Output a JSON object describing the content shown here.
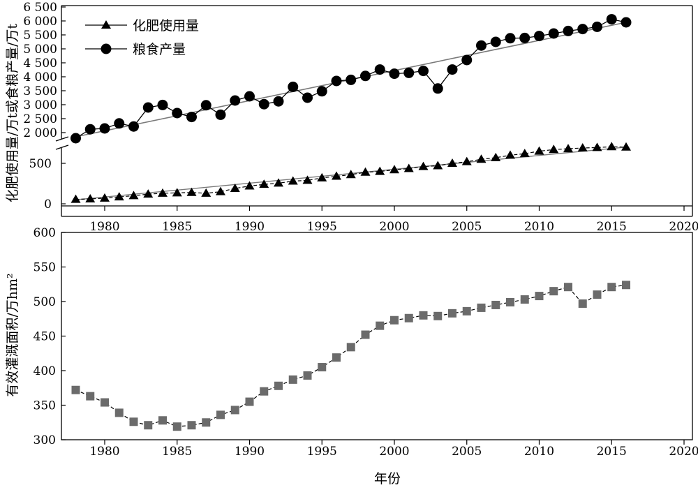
{
  "chart_data": [
    {
      "type": "line",
      "title": "",
      "xlabel": "",
      "ylabel": "化肥使用量/万t或食粮产量/万t",
      "xlim": [
        1977,
        2020
      ],
      "x_ticks": [
        "1980",
        "1985",
        "1990",
        "1995",
        "2000",
        "2005",
        "2010",
        "2015",
        "2020"
      ],
      "y_axis_break": true,
      "y_ticks_upper": [
        "6 500",
        "6 000",
        "5 500",
        "5 000",
        "4 500",
        "4 000",
        "3 500",
        "3 000",
        "2 500",
        "2 000"
      ],
      "y_ticks_lower": [
        "500",
        "0"
      ],
      "legend_position": "top-left",
      "x": [
        1978,
        1979,
        1980,
        1981,
        1982,
        1983,
        1984,
        1985,
        1986,
        1987,
        1988,
        1989,
        1990,
        1991,
        1992,
        1993,
        1994,
        1995,
        1996,
        1997,
        1998,
        1999,
        2000,
        2001,
        2002,
        2003,
        2004,
        2005,
        2006,
        2007,
        2008,
        2009,
        2010,
        2011,
        2012,
        2013,
        2014,
        2015,
        2016
      ],
      "series": [
        {
          "name": "化肥使用量",
          "marker": "triangle",
          "color": "#000000",
          "values": [
            55,
            60,
            70,
            85,
            100,
            120,
            130,
            135,
            140,
            130,
            150,
            190,
            220,
            240,
            255,
            280,
            290,
            320,
            340,
            360,
            390,
            400,
            420,
            435,
            460,
            470,
            500,
            520,
            550,
            570,
            600,
            620,
            650,
            670,
            680,
            690,
            695,
            705,
            700
          ],
          "trend": [
            50,
            700
          ]
        },
        {
          "name": "粮食产量",
          "marker": "circle",
          "color": "#000000",
          "values": [
            1800,
            2120,
            2150,
            2330,
            2220,
            2900,
            2990,
            2700,
            2560,
            2980,
            2640,
            3150,
            3300,
            3020,
            3120,
            3640,
            3250,
            3480,
            3850,
            3890,
            4030,
            4260,
            4110,
            4140,
            4210,
            3580,
            4260,
            4600,
            5120,
            5250,
            5380,
            5390,
            5460,
            5550,
            5640,
            5710,
            5790,
            6060,
            5950
          ],
          "trend": [
            1850,
            5950
          ]
        }
      ]
    },
    {
      "type": "line",
      "title": "",
      "xlabel": "年份",
      "ylabel": "有效灌溉面积/万hm²",
      "xlim": [
        1977,
        2020
      ],
      "ylim": [
        300,
        600
      ],
      "x_ticks": [
        "1980",
        "1985",
        "1990",
        "1995",
        "2000",
        "2005",
        "2010",
        "2015",
        "2020"
      ],
      "y_ticks": [
        "600",
        "550",
        "500",
        "450",
        "400",
        "350",
        "300"
      ],
      "x": [
        1978,
        1979,
        1980,
        1981,
        1982,
        1983,
        1984,
        1985,
        1986,
        1987,
        1988,
        1989,
        1990,
        1991,
        1992,
        1993,
        1994,
        1995,
        1996,
        1997,
        1998,
        1999,
        2000,
        2001,
        2002,
        2003,
        2004,
        2005,
        2006,
        2007,
        2008,
        2009,
        2010,
        2011,
        2012,
        2013,
        2014,
        2015,
        2016
      ],
      "series": [
        {
          "marker": "square",
          "color": "#6b6b6b",
          "values": [
            372,
            363,
            354,
            339,
            326,
            321,
            328,
            319,
            321,
            325,
            336,
            343,
            355,
            370,
            378,
            387,
            393,
            405,
            419,
            434,
            452,
            465,
            473,
            476,
            480,
            479,
            483,
            486,
            491,
            495,
            499,
            503,
            508,
            515,
            521,
            497,
            510,
            521,
            524
          ]
        }
      ]
    }
  ]
}
